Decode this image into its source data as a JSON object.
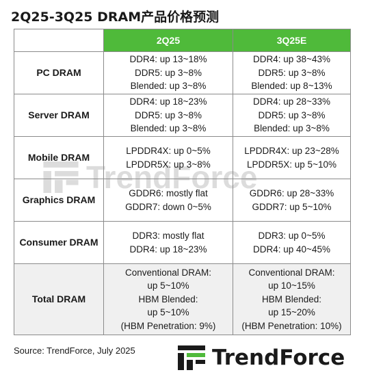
{
  "title": "2Q25-3Q25 DRAM产品价格预测",
  "table": {
    "headers": [
      "",
      "2Q25",
      "3Q25E"
    ],
    "rows": [
      {
        "category": "PC DRAM",
        "q2": [
          "DDR4: up 13~18%",
          "DDR5: up 3~8%",
          "Blended: up 3~8%"
        ],
        "q3": [
          "DDR4: up 38~43%",
          "DDR5: up 3~8%",
          "Blended: up 8~13%"
        ]
      },
      {
        "category": "Server DRAM",
        "q2": [
          "DDR4: up 18~23%",
          "DDR5: up 3~8%",
          "Blended: up 3~8%"
        ],
        "q3": [
          "DDR4: up 28~33%",
          "DDR5: up 3~8%",
          "Blended: up 3~8%"
        ]
      },
      {
        "category": "Mobile DRAM",
        "q2": [
          "LPDDR4X: up 0~5%",
          "LPDDR5X: up 3~8%"
        ],
        "q3": [
          "LPDDR4X: up 23~28%",
          "LPDDR5X: up 5~10%"
        ]
      },
      {
        "category": "Graphics DRAM",
        "q2": [
          "GDDR6: mostly flat",
          "GDDR7: down 0~5%"
        ],
        "q3": [
          "GDDR6: up 28~33%",
          "GDDR7: up 5~10%"
        ]
      },
      {
        "category": "Consumer DRAM",
        "q2": [
          "DDR3: mostly flat",
          "DDR4: up 18~23%"
        ],
        "q3": [
          "DDR3: up 0~5%",
          "DDR4: up 40~45%"
        ]
      },
      {
        "category": "Total DRAM",
        "q2": [
          "Conventional DRAM:",
          "up 5~10%",
          "HBM Blended:",
          "up 5~10%",
          "(HBM Penetration: 9%)"
        ],
        "q3": [
          "Conventional DRAM:",
          "up 10~15%",
          "HBM Blended:",
          "up 15~20%",
          "(HBM Penetration: 10%)"
        ]
      }
    ]
  },
  "source": "Source: TrendForce, July 2025",
  "logo_text": "TrendForce",
  "watermark_text": "TrendForce",
  "colors": {
    "header_green": "#4fba3a",
    "total_row_bg": "#f0f0f0",
    "border": "#8a8a8a"
  }
}
